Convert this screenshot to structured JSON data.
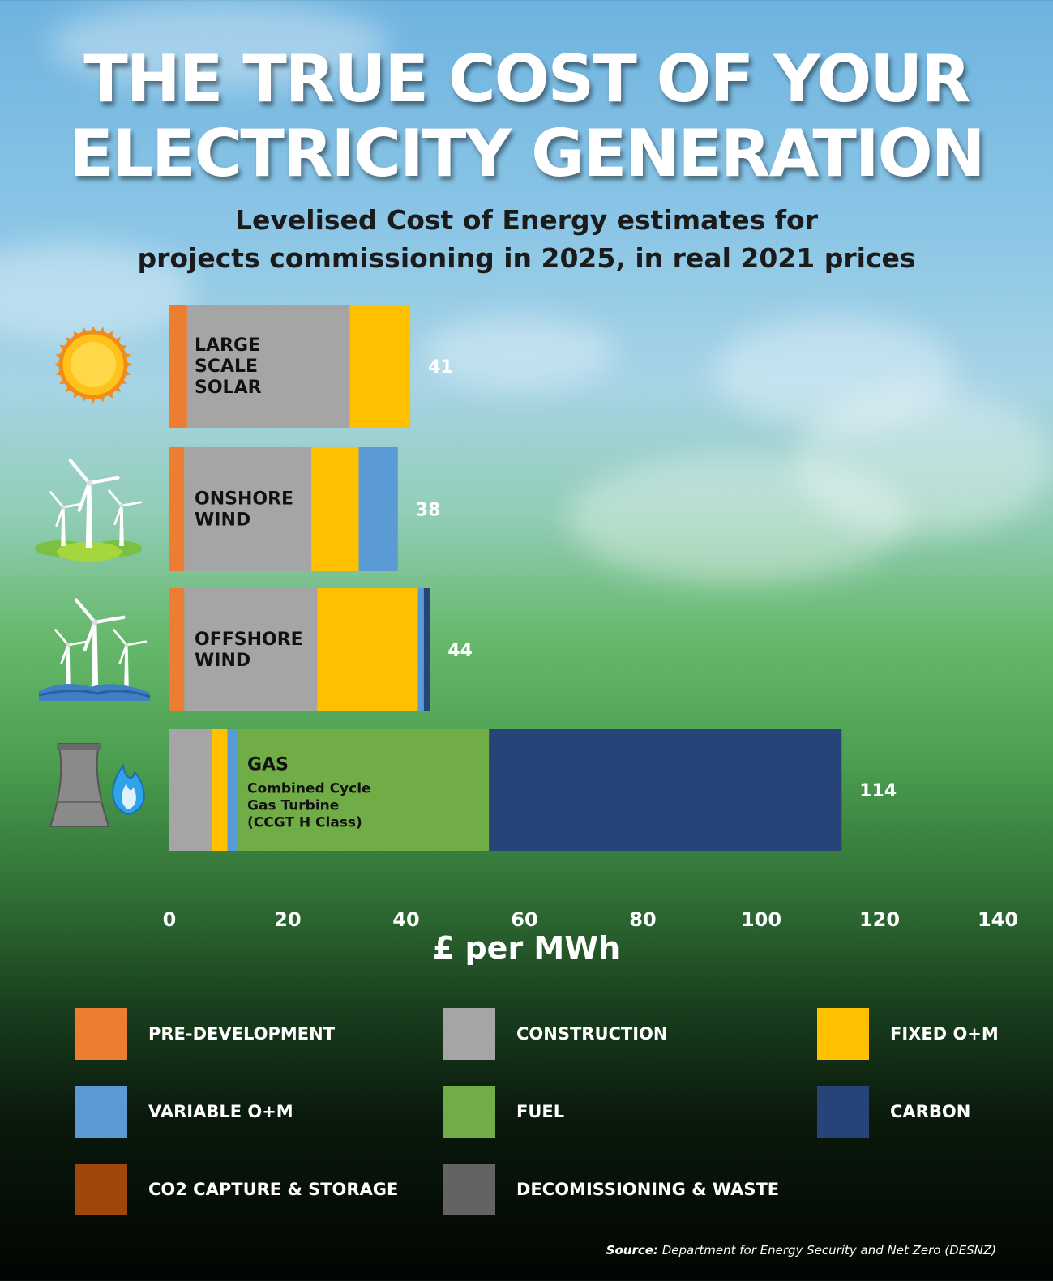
{
  "title_lines": [
    "THE TRUE COST OF YOUR",
    "ELECTRICITY GENERATION"
  ],
  "subtitle_lines": [
    "Levelised Cost of Energy estimates for",
    "projects commissioning in 2025, in real 2021 prices"
  ],
  "chart_data": {
    "type": "bar",
    "orientation": "horizontal",
    "stacked": true,
    "title": "THE TRUE COST OF YOUR ELECTRICITY GENERATION",
    "subtitle": "Levelised Cost of Energy estimates for projects commissioning in 2025, in real 2021 prices",
    "xlabel": "£ per MWh",
    "ylabel": "",
    "xlim": [
      0,
      140
    ],
    "xticks": [
      0,
      20,
      40,
      60,
      80,
      100,
      120,
      140
    ],
    "grid": false,
    "legend": "bottom",
    "categories": [
      {
        "id": "solar",
        "label_lines": [
          "LARGE",
          "SCALE",
          "SOLAR"
        ],
        "sub_lines": [],
        "total_label": "41"
      },
      {
        "id": "onshore",
        "label_lines": [
          "ONSHORE",
          "WIND"
        ],
        "sub_lines": [],
        "total_label": "38"
      },
      {
        "id": "offshore",
        "label_lines": [
          "OFFSHORE",
          "WIND"
        ],
        "sub_lines": [],
        "total_label": "44"
      },
      {
        "id": "gas",
        "label_lines": [
          "GAS"
        ],
        "sub_lines": [
          "Combined Cycle",
          "Gas Turbine",
          "(CCGT H Class)"
        ],
        "total_label": "114"
      }
    ],
    "series": [
      {
        "name": "PRE-DEVELOPMENT",
        "color": "#ed7d31",
        "values": [
          3,
          2.5,
          2.5,
          0
        ]
      },
      {
        "name": "CONSTRUCTION",
        "color": "#a5a5a5",
        "values": [
          27.5,
          21.5,
          22.5,
          7.2
        ]
      },
      {
        "name": "FIXED O+M",
        "color": "#ffc000",
        "values": [
          10.2,
          8,
          17,
          2.6
        ]
      },
      {
        "name": "VARIABLE O+M",
        "color": "#5b9bd5",
        "values": [
          0,
          6.6,
          1,
          1.8
        ]
      },
      {
        "name": "FUEL",
        "color": "#70ad47",
        "values": [
          0,
          0,
          0,
          42.4
        ]
      },
      {
        "name": "CARBON",
        "color": "#264478",
        "values": [
          0,
          0,
          1,
          59.6
        ]
      },
      {
        "name": "CO2 CAPTURE & STORAGE",
        "color": "#9e480e",
        "values": [
          0,
          0,
          0,
          0
        ]
      },
      {
        "name": "DECOMISSIONING & WASTE",
        "color": "#636363",
        "values": [
          0,
          0,
          0,
          0
        ]
      }
    ]
  },
  "legend_items": [
    {
      "label": "PRE-DEVELOPMENT",
      "color": "#ed7d31"
    },
    {
      "label": "CONSTRUCTION",
      "color": "#a5a5a5"
    },
    {
      "label": "FIXED O+M",
      "color": "#ffc000"
    },
    {
      "label": "VARIABLE O+M",
      "color": "#5b9bd5"
    },
    {
      "label": "FUEL",
      "color": "#70ad47"
    },
    {
      "label": "CARBON",
      "color": "#264478"
    },
    {
      "label": "CO2 CAPTURE & STORAGE",
      "color": "#9e480e"
    },
    {
      "label": "DECOMISSIONING & WASTE",
      "color": "#636363"
    }
  ],
  "source": {
    "prefix": "Source:",
    "text": "Department for Energy Security and Net Zero (DESNZ)"
  },
  "icons": [
    "sun-icon",
    "onshore-wind-turbine-icon",
    "offshore-wind-turbine-icon",
    "gas-power-plant-icon"
  ]
}
